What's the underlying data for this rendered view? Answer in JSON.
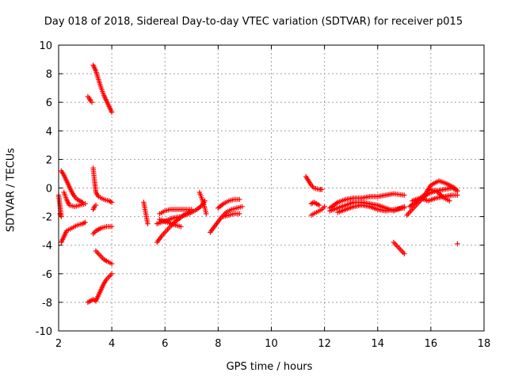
{
  "chart_data": {
    "type": "scatter",
    "title": "Day 018 of 2018, Sidereal Day-to-day VTEC variation (SDTVAR) for receiver p015",
    "xlabel": "GPS time / hours",
    "ylabel": "SDTVAR / TECUs",
    "xlim": [
      2,
      18
    ],
    "ylim": [
      -10,
      10
    ],
    "xticks": [
      "2",
      "4",
      "6",
      "8",
      "10",
      "12",
      "14",
      "16",
      "18"
    ],
    "yticks": [
      "10",
      "8",
      "6",
      "4",
      "2",
      "0",
      "-2",
      "-4",
      "-6",
      "-8",
      "-10"
    ],
    "grid": true,
    "marker": "+",
    "color": "#ff0000",
    "series": [
      {
        "name": "seg1",
        "points": [
          [
            3.3,
            8.6
          ],
          [
            3.4,
            8.2
          ],
          [
            3.5,
            7.6
          ],
          [
            3.6,
            7.0
          ],
          [
            3.7,
            6.5
          ],
          [
            3.8,
            6.1
          ],
          [
            3.9,
            5.7
          ],
          [
            4.0,
            5.3
          ]
        ]
      },
      {
        "name": "seg2",
        "points": [
          [
            3.1,
            6.4
          ],
          [
            3.15,
            6.3
          ],
          [
            3.2,
            6.1
          ],
          [
            3.25,
            6.0
          ]
        ]
      },
      {
        "name": "seg3",
        "points": [
          [
            2.1,
            1.2
          ],
          [
            2.2,
            0.9
          ],
          [
            2.3,
            0.5
          ],
          [
            2.4,
            0.1
          ],
          [
            2.5,
            -0.3
          ],
          [
            2.6,
            -0.6
          ],
          [
            2.7,
            -0.8
          ],
          [
            2.8,
            -0.9
          ],
          [
            2.9,
            -1.0
          ]
        ]
      },
      {
        "name": "seg4",
        "points": [
          [
            2.0,
            -0.5
          ],
          [
            2.05,
            -1.2
          ],
          [
            2.1,
            -2.0
          ],
          [
            2.05,
            -1.8
          ]
        ]
      },
      {
        "name": "seg5",
        "points": [
          [
            2.2,
            -0.3
          ],
          [
            2.3,
            -0.8
          ],
          [
            2.4,
            -1.2
          ],
          [
            2.6,
            -1.3
          ],
          [
            2.8,
            -1.2
          ],
          [
            3.0,
            -1.1
          ]
        ]
      },
      {
        "name": "seg6",
        "points": [
          [
            2.1,
            -3.8
          ],
          [
            2.2,
            -3.4
          ],
          [
            2.3,
            -3.0
          ],
          [
            2.5,
            -2.8
          ],
          [
            2.7,
            -2.6
          ],
          [
            2.9,
            -2.5
          ],
          [
            3.0,
            -2.4
          ]
        ]
      },
      {
        "name": "seg7",
        "points": [
          [
            3.3,
            1.4
          ],
          [
            3.35,
            0.5
          ],
          [
            3.4,
            -0.3
          ],
          [
            3.5,
            -0.6
          ],
          [
            3.7,
            -0.8
          ],
          [
            3.9,
            -0.9
          ],
          [
            4.0,
            -1.0
          ]
        ]
      },
      {
        "name": "seg8",
        "points": [
          [
            3.3,
            -1.5
          ],
          [
            3.35,
            -1.3
          ],
          [
            3.4,
            -1.2
          ]
        ]
      },
      {
        "name": "seg9",
        "points": [
          [
            3.3,
            -3.2
          ],
          [
            3.4,
            -3.0
          ],
          [
            3.5,
            -2.9
          ],
          [
            3.6,
            -2.8
          ],
          [
            3.8,
            -2.7
          ],
          [
            4.0,
            -2.7
          ]
        ]
      },
      {
        "name": "seg10",
        "points": [
          [
            3.4,
            -4.4
          ],
          [
            3.5,
            -4.6
          ],
          [
            3.6,
            -4.8
          ],
          [
            3.7,
            -5.0
          ],
          [
            3.8,
            -5.1
          ],
          [
            4.0,
            -5.3
          ]
        ]
      },
      {
        "name": "seg11",
        "points": [
          [
            3.1,
            -8.0
          ],
          [
            3.2,
            -7.9
          ],
          [
            3.3,
            -7.8
          ],
          [
            3.4,
            -7.9
          ]
        ]
      },
      {
        "name": "seg12",
        "points": [
          [
            3.4,
            -7.9
          ],
          [
            3.5,
            -7.5
          ],
          [
            3.6,
            -7.1
          ],
          [
            3.7,
            -6.7
          ],
          [
            3.8,
            -6.4
          ],
          [
            3.9,
            -6.2
          ],
          [
            4.0,
            -6.0
          ]
        ]
      },
      {
        "name": "seg13",
        "points": [
          [
            5.2,
            -1.0
          ],
          [
            5.25,
            -1.5
          ],
          [
            5.3,
            -2.0
          ],
          [
            5.35,
            -2.5
          ]
        ]
      },
      {
        "name": "seg14",
        "points": [
          [
            5.7,
            -3.8
          ],
          [
            5.9,
            -3.3
          ],
          [
            6.1,
            -2.9
          ],
          [
            6.3,
            -2.5
          ],
          [
            6.5,
            -2.2
          ],
          [
            6.7,
            -1.9
          ],
          [
            6.9,
            -1.7
          ]
        ]
      },
      {
        "name": "seg15",
        "points": [
          [
            5.8,
            -1.8
          ],
          [
            6.0,
            -1.6
          ],
          [
            6.2,
            -1.5
          ],
          [
            6.5,
            -1.5
          ],
          [
            6.8,
            -1.5
          ],
          [
            7.0,
            -1.5
          ]
        ]
      },
      {
        "name": "seg16",
        "points": [
          [
            5.7,
            -2.5
          ],
          [
            6.0,
            -2.3
          ],
          [
            6.3,
            -2.1
          ],
          [
            6.6,
            -2.0
          ],
          [
            6.9,
            -1.8
          ],
          [
            7.2,
            -1.5
          ],
          [
            7.4,
            -1.2
          ],
          [
            7.5,
            -0.9
          ]
        ]
      },
      {
        "name": "seg17",
        "points": [
          [
            5.8,
            -2.2
          ],
          [
            6.1,
            -2.4
          ],
          [
            6.4,
            -2.6
          ],
          [
            6.6,
            -2.7
          ]
        ]
      },
      {
        "name": "seg18",
        "points": [
          [
            7.3,
            -0.3
          ],
          [
            7.4,
            -0.8
          ],
          [
            7.5,
            -1.4
          ],
          [
            7.55,
            -1.8
          ]
        ]
      },
      {
        "name": "seg19",
        "points": [
          [
            7.7,
            -3.1
          ],
          [
            7.9,
            -2.6
          ],
          [
            8.1,
            -2.1
          ],
          [
            8.3,
            -1.7
          ],
          [
            8.5,
            -1.5
          ],
          [
            8.7,
            -1.4
          ],
          [
            8.9,
            -1.3
          ]
        ]
      },
      {
        "name": "seg20",
        "points": [
          [
            8.0,
            -1.4
          ],
          [
            8.2,
            -1.1
          ],
          [
            8.4,
            -0.9
          ],
          [
            8.6,
            -0.8
          ],
          [
            8.8,
            -0.8
          ]
        ]
      },
      {
        "name": "seg21",
        "points": [
          [
            8.2,
            -2.0
          ],
          [
            8.4,
            -1.9
          ],
          [
            8.6,
            -1.8
          ],
          [
            8.8,
            -1.8
          ]
        ]
      },
      {
        "name": "seg22",
        "points": [
          [
            11.3,
            0.8
          ],
          [
            11.4,
            0.5
          ],
          [
            11.5,
            0.2
          ],
          [
            11.6,
            0.0
          ],
          [
            11.8,
            -0.1
          ],
          [
            11.9,
            -0.1
          ]
        ]
      },
      {
        "name": "seg23",
        "points": [
          [
            11.5,
            -1.1
          ],
          [
            11.6,
            -1.0
          ],
          [
            11.7,
            -1.1
          ],
          [
            11.8,
            -1.2
          ]
        ]
      },
      {
        "name": "seg24",
        "points": [
          [
            11.5,
            -1.9
          ],
          [
            11.7,
            -1.7
          ],
          [
            11.9,
            -1.5
          ],
          [
            12.0,
            -1.3
          ]
        ]
      },
      {
        "name": "seg25",
        "points": [
          [
            12.2,
            -1.4
          ],
          [
            12.5,
            -1.0
          ],
          [
            12.8,
            -0.8
          ],
          [
            13.1,
            -0.7
          ],
          [
            13.4,
            -0.7
          ],
          [
            13.7,
            -0.6
          ],
          [
            14.0,
            -0.6
          ],
          [
            14.3,
            -0.5
          ],
          [
            14.6,
            -0.4
          ],
          [
            15.0,
            -0.5
          ]
        ]
      },
      {
        "name": "seg26",
        "points": [
          [
            12.2,
            -1.6
          ],
          [
            12.5,
            -1.4
          ],
          [
            12.8,
            -1.2
          ],
          [
            13.1,
            -1.0
          ],
          [
            13.4,
            -1.0
          ],
          [
            13.7,
            -1.1
          ],
          [
            14.0,
            -1.2
          ],
          [
            14.3,
            -1.4
          ],
          [
            14.6,
            -1.6
          ],
          [
            15.0,
            -1.3
          ]
        ]
      },
      {
        "name": "seg27",
        "points": [
          [
            12.5,
            -1.7
          ],
          [
            12.8,
            -1.5
          ],
          [
            13.1,
            -1.3
          ],
          [
            13.4,
            -1.2
          ],
          [
            13.7,
            -1.3
          ],
          [
            14.0,
            -1.5
          ],
          [
            14.3,
            -1.6
          ],
          [
            14.6,
            -1.5
          ],
          [
            15.0,
            -1.4
          ]
        ]
      },
      {
        "name": "seg28",
        "points": [
          [
            14.6,
            -3.8
          ],
          [
            14.7,
            -4.0
          ],
          [
            14.8,
            -4.2
          ],
          [
            14.9,
            -4.4
          ],
          [
            15.0,
            -4.6
          ]
        ]
      },
      {
        "name": "seg29",
        "points": [
          [
            15.1,
            -1.9
          ],
          [
            15.3,
            -1.5
          ],
          [
            15.5,
            -1.1
          ],
          [
            15.7,
            -0.7
          ],
          [
            15.9,
            -0.4
          ],
          [
            16.2,
            -0.2
          ],
          [
            16.5,
            -0.1
          ],
          [
            16.8,
            0.0
          ],
          [
            17.0,
            -0.2
          ]
        ]
      },
      {
        "name": "seg30",
        "points": [
          [
            15.2,
            -1.3
          ],
          [
            15.5,
            -0.9
          ],
          [
            15.8,
            -0.4
          ],
          [
            16.0,
            0.2
          ],
          [
            16.3,
            0.5
          ],
          [
            16.6,
            0.3
          ],
          [
            16.9,
            0.0
          ],
          [
            17.0,
            -0.2
          ]
        ]
      },
      {
        "name": "seg31",
        "points": [
          [
            15.3,
            -0.9
          ],
          [
            15.6,
            -0.7
          ],
          [
            15.9,
            -0.9
          ],
          [
            16.2,
            -0.7
          ],
          [
            16.5,
            -0.6
          ],
          [
            16.8,
            -0.5
          ],
          [
            17.0,
            -0.5
          ]
        ]
      },
      {
        "name": "seg32",
        "points": [
          [
            15.9,
            -0.1
          ],
          [
            16.2,
            -0.2
          ],
          [
            16.5,
            -0.7
          ],
          [
            16.7,
            -0.9
          ]
        ]
      },
      {
        "name": "seg33",
        "points": [
          [
            17.0,
            -3.9
          ]
        ]
      }
    ]
  }
}
